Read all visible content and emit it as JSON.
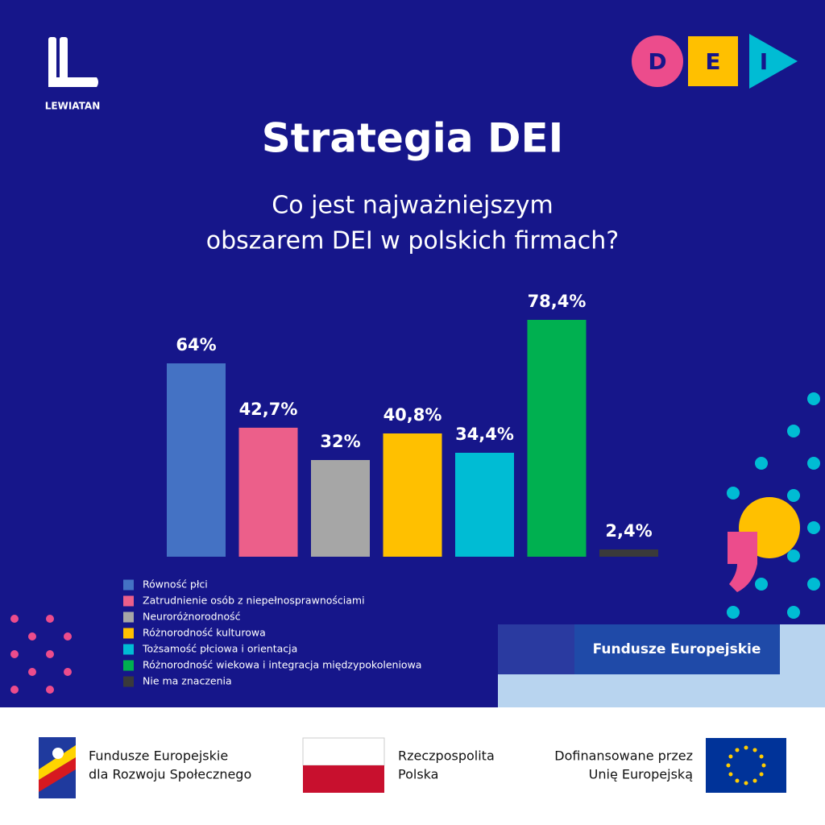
{
  "header": {
    "brand": "LEWIATAN",
    "badge_letters": [
      "D",
      "E",
      "I"
    ],
    "title": "Strategia DEI",
    "subtitle": [
      "Co jest najważniejszym",
      "obszarem DEI w polskich firmach?"
    ]
  },
  "chart_data": {
    "type": "bar",
    "categories": [
      "Równość płci",
      "Zatrudnienie osób z niepełnosprawnościami",
      "Neuroróżnorodność",
      "Różnorodność kulturowa",
      "Tożsamość płciowa i orientacja",
      "Różnorodność wiekowa i integracja międzypokoleniowa",
      "Nie ma znaczenia"
    ],
    "values": [
      64,
      42.7,
      32,
      40.8,
      34.4,
      78.4,
      2.4
    ],
    "value_labels": [
      "64%",
      "42,7%",
      "32%",
      "40,8%",
      "34,4%",
      "78,4%",
      "2,4%"
    ],
    "colors": [
      "#4472c4",
      "#ec5f8a",
      "#a6a6a6",
      "#ffc000",
      "#00bcd4",
      "#00b050",
      "#3a3a3a"
    ]
  },
  "badge": "Fundusze Europejskie",
  "footer": {
    "fe": [
      "Fundusze Europejskie",
      "dla Rozwoju Społecznego"
    ],
    "rp": [
      "Rzeczpospolita",
      "Polska"
    ],
    "eu": [
      "Dofinansowane przez",
      "Unię Europejską"
    ]
  }
}
